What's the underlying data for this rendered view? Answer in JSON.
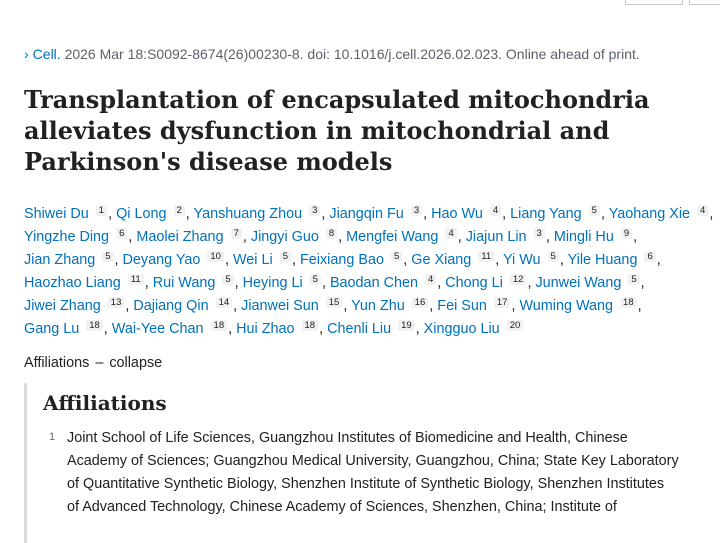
{
  "citation": {
    "journal": "Cell.",
    "rest": " 2026 Mar 18:S0092-8674(26)00230-8. doi: 10.1016/j.cell.2026.02.023. Online ahead of print."
  },
  "title_lines": [
    "Transplantation of encapsulated mitochondria",
    "alleviates dysfunction in mitochondrial and",
    "Parkinson's disease models"
  ],
  "author_rows": [
    [
      {
        "name": "Shiwei Du",
        "sup": "1",
        "sep": ","
      },
      {
        "name": "Qi Long",
        "sup": "2",
        "sep": ","
      },
      {
        "name": "Yanshuang Zhou",
        "sup": "3",
        "sep": ","
      },
      {
        "name": "Jiangqin Fu",
        "sup": "3",
        "sep": ","
      },
      {
        "name": "Hao Wu",
        "sup": "4",
        "sep": ","
      },
      {
        "name": "Liang Yang",
        "sup": "5",
        "sep": ","
      },
      {
        "name": "Yaohang Xie",
        "sup": "4",
        "sep": ","
      }
    ],
    [
      {
        "name": "Yingzhe Ding",
        "sup": "6",
        "sep": ","
      },
      {
        "name": "Maolei Zhang",
        "sup": "7",
        "sep": ","
      },
      {
        "name": "Jingyi Guo",
        "sup": "8",
        "sep": ","
      },
      {
        "name": "Mengfei Wang",
        "sup": "4",
        "sep": ","
      },
      {
        "name": "Jiajun Lin",
        "sup": "3",
        "sep": ","
      },
      {
        "name": "Mingli Hu",
        "sup": "9",
        "sep": ","
      }
    ],
    [
      {
        "name": "Jian Zhang",
        "sup": "5",
        "sep": ","
      },
      {
        "name": "Deyang Yao",
        "sup": "10",
        "sep": ","
      },
      {
        "name": "Wei Li",
        "sup": "5",
        "sep": ","
      },
      {
        "name": "Feixiang Bao",
        "sup": "5",
        "sep": ","
      },
      {
        "name": "Ge Xiang",
        "sup": "11",
        "sep": ","
      },
      {
        "name": "Yi Wu",
        "sup": "5",
        "sep": ","
      },
      {
        "name": "Yile Huang",
        "sup": "6",
        "sep": ","
      }
    ],
    [
      {
        "name": "Haozhao Liang",
        "sup": "11",
        "sep": ","
      },
      {
        "name": "Rui Wang",
        "sup": "5",
        "sep": ","
      },
      {
        "name": "Heying Li",
        "sup": "5",
        "sep": ","
      },
      {
        "name": "Baodan Chen",
        "sup": "4",
        "sep": ","
      },
      {
        "name": "Chong Li",
        "sup": "12",
        "sep": ","
      },
      {
        "name": "Junwei Wang",
        "sup": "5",
        "sep": ","
      }
    ],
    [
      {
        "name": "Jiwei Zhang",
        "sup": "13",
        "sep": ","
      },
      {
        "name": "Dajiang Qin",
        "sup": "14",
        "sep": ","
      },
      {
        "name": "Jianwei Sun",
        "sup": "15",
        "sep": ","
      },
      {
        "name": "Yun Zhu",
        "sup": "16",
        "sep": ","
      },
      {
        "name": "Fei Sun",
        "sup": "17",
        "sep": ","
      },
      {
        "name": "Wuming Wang",
        "sup": "18",
        "sep": ","
      }
    ],
    [
      {
        "name": "Gang Lu",
        "sup": "18",
        "sep": ","
      },
      {
        "name": "Wai-Yee Chan",
        "sup": "18",
        "sep": ","
      },
      {
        "name": "Hui Zhao",
        "sup": "18",
        "sep": ","
      },
      {
        "name": "Chenli Liu",
        "sup": "19",
        "sep": ","
      },
      {
        "name": "Xingguo Liu",
        "sup": "20",
        "sep": ""
      }
    ]
  ],
  "affiliations_toggle": {
    "label": "Affiliations",
    "dash": "–",
    "action": "collapse"
  },
  "affiliations": {
    "heading": "Affiliations",
    "items": [
      {
        "num": "1",
        "lines": [
          "Joint School of Life Sciences, Guangzhou Institutes of Biomedicine and Health, Chinese",
          "Academy of Sciences; Guangzhou Medical University, Guangzhou, China; State Key Laboratory",
          "of Quantitative Synthetic Biology, Shenzhen Institute of Synthetic Biology, Shenzhen Institutes",
          "of Advanced Technology, Chinese Academy of Sciences, Shenzhen, China; Institute of"
        ]
      }
    ]
  },
  "icons": {
    "citation_chevron": "›"
  },
  "colors": {
    "link": "#0071bc",
    "text": "#212121",
    "muted": "#5b616b"
  }
}
